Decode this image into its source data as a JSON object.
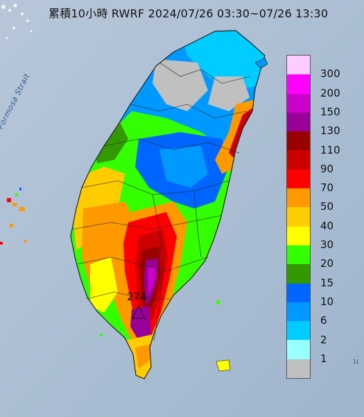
{
  "title": "累積10小時 RWRF 2024/07/26 03:30~07/26 13:30",
  "strait_label": "Formosa Strait",
  "max_value_label": "274",
  "edge_label": "1(",
  "legend": [
    {
      "label": "300",
      "color": "#ffccff"
    },
    {
      "label": "200",
      "color": "#ff00ff"
    },
    {
      "label": "150",
      "color": "#cc00cc"
    },
    {
      "label": "130",
      "color": "#990099"
    },
    {
      "label": "110",
      "color": "#990000"
    },
    {
      "label": "90",
      "color": "#cc0000"
    },
    {
      "label": "70",
      "color": "#ff0000"
    },
    {
      "label": "50",
      "color": "#ff9900"
    },
    {
      "label": "40",
      "color": "#ffcc00"
    },
    {
      "label": "30",
      "color": "#ffff00"
    },
    {
      "label": "20",
      "color": "#33ff00"
    },
    {
      "label": "15",
      "color": "#339900"
    },
    {
      "label": "10",
      "color": "#0066ff"
    },
    {
      "label": "6",
      "color": "#0099ff"
    },
    {
      "label": "2",
      "color": "#00ccff"
    },
    {
      "label": "1",
      "color": "#99ffff"
    },
    {
      "label": "",
      "color": "#c0c0c0"
    }
  ]
}
